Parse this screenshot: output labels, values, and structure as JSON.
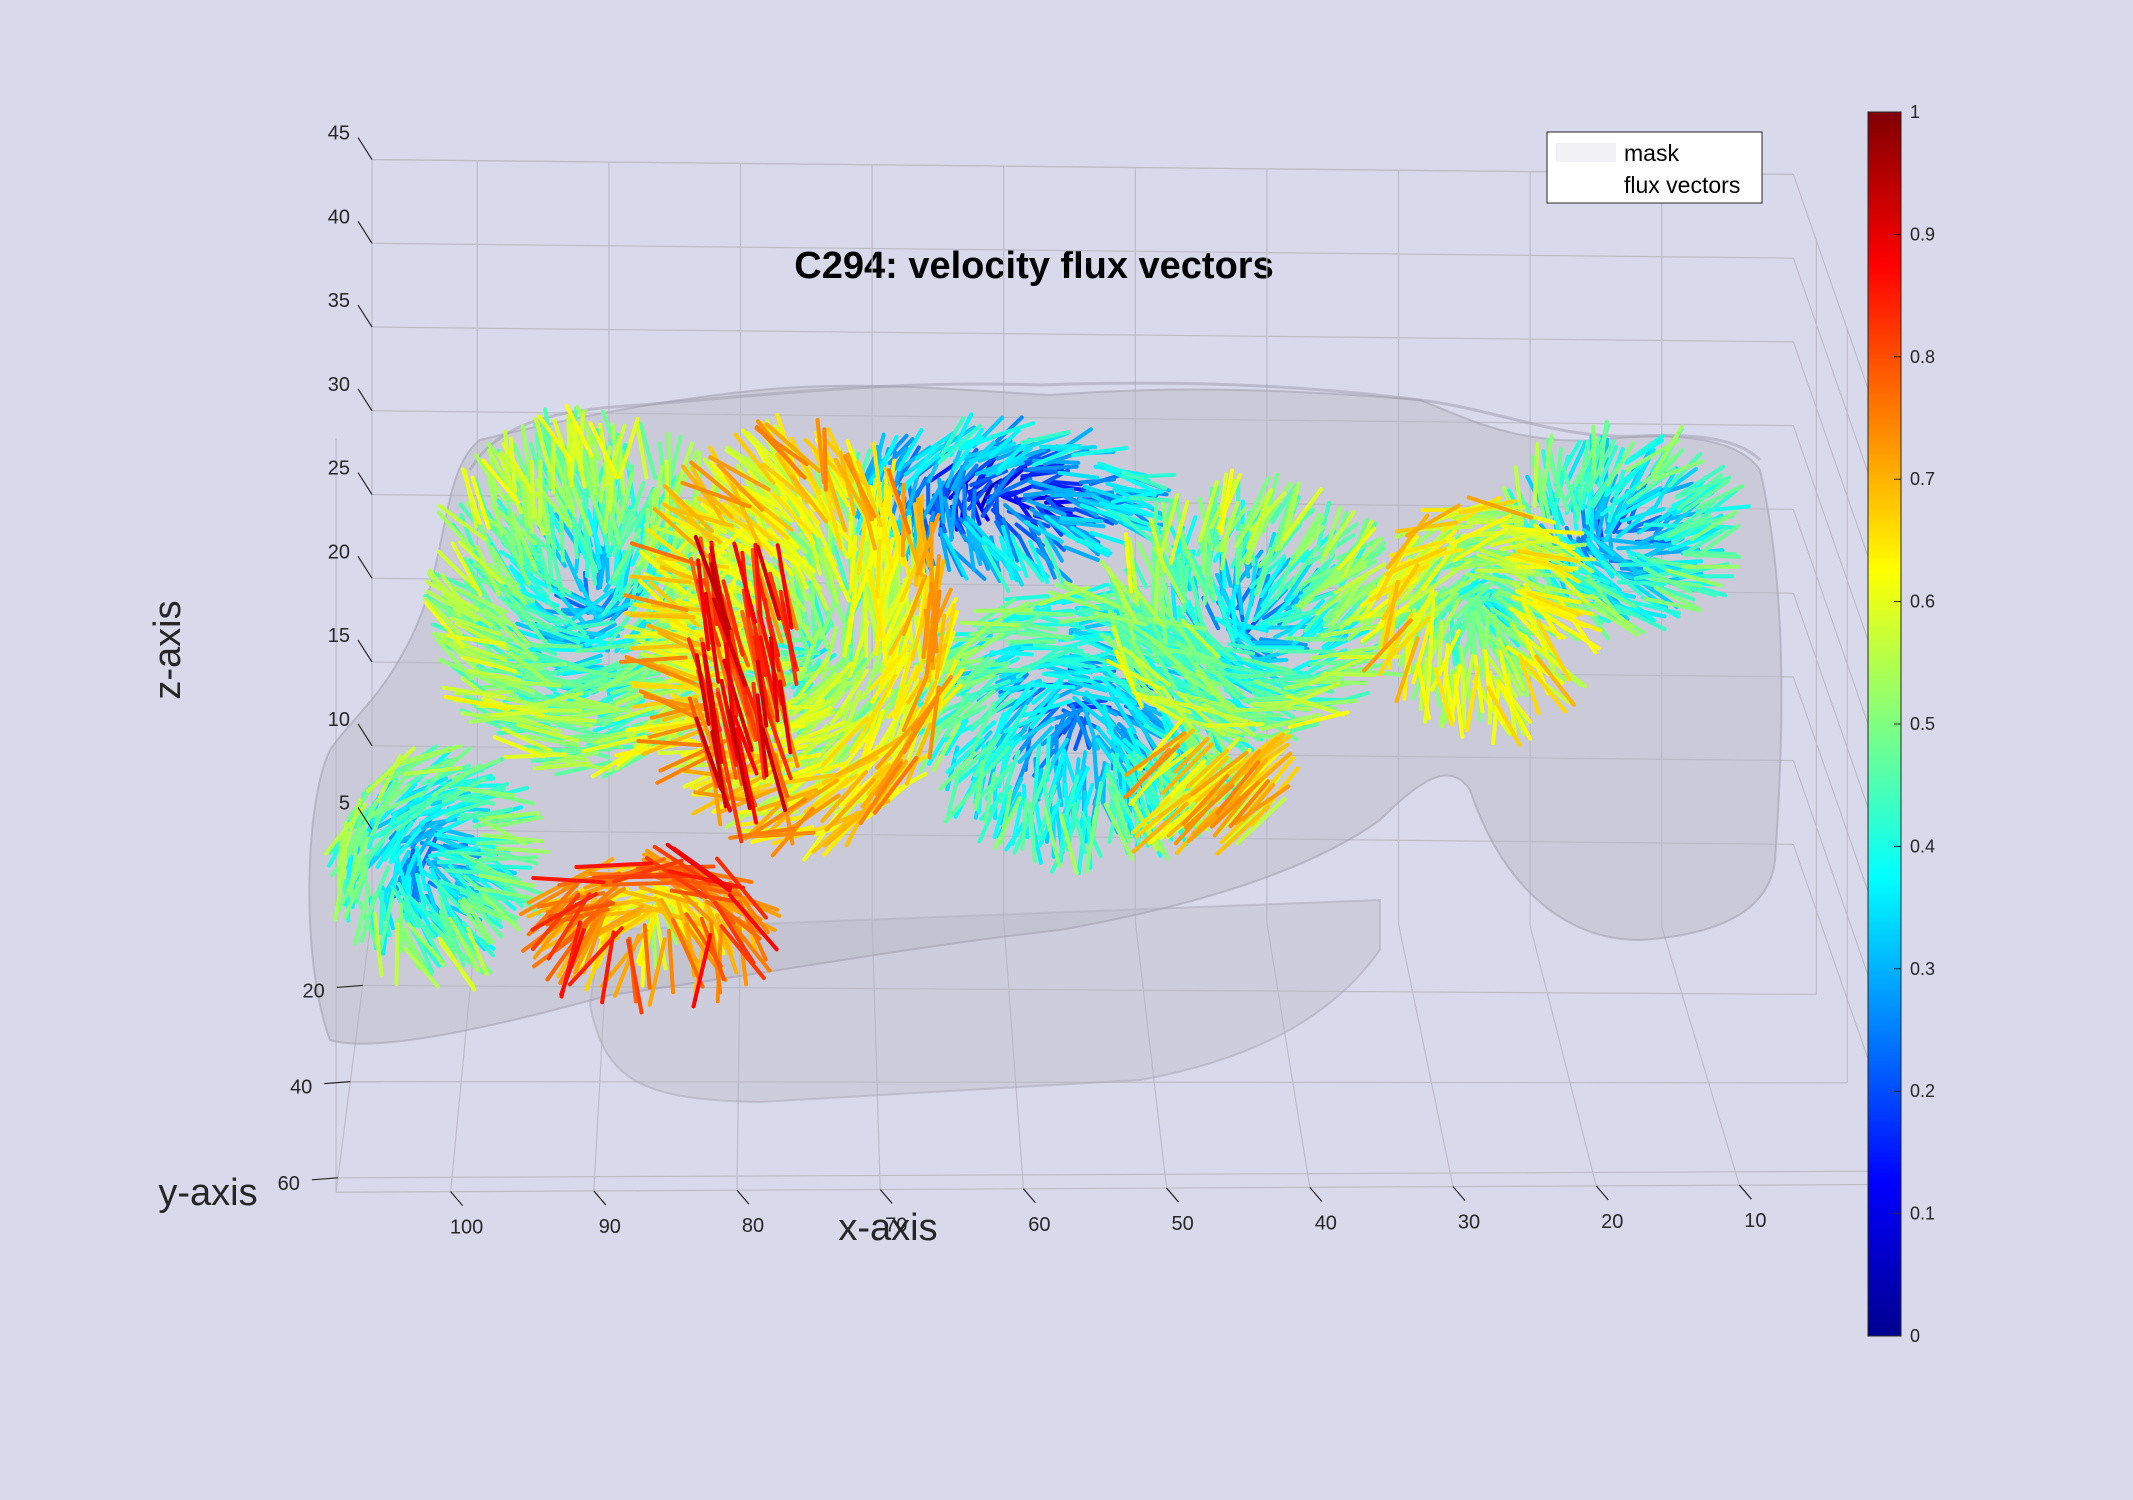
{
  "chart_data": {
    "type": "quiver3d",
    "title": "C294: velocity flux vectors",
    "xlabel": "x-axis",
    "ylabel": "y-axis",
    "zlabel": "z-axis",
    "x_ticks": [
      100,
      90,
      80,
      70,
      60,
      50,
      40,
      30,
      20,
      10
    ],
    "y_ticks": [
      20,
      40,
      60
    ],
    "z_ticks": [
      5,
      10,
      15,
      20,
      25,
      30,
      35,
      40,
      45
    ],
    "xlim": [
      0,
      108
    ],
    "ylim": [
      5,
      63
    ],
    "zlim": [
      0,
      45
    ],
    "x_direction": "reversed",
    "grid": true,
    "legend": {
      "location": "top-right",
      "entries": [
        {
          "label": "mask",
          "swatch": "#f2f2f6"
        },
        {
          "label": "flux vectors",
          "swatch": "#ffffff"
        }
      ]
    },
    "colorbar": {
      "colormap": "jet",
      "limits": [
        0,
        1
      ],
      "ticks": [
        "0",
        "0.1",
        "0.2",
        "0.3",
        "0.4",
        "0.5",
        "0.6",
        "0.7",
        "0.8",
        "0.9",
        "1"
      ]
    },
    "series": [
      {
        "name": "mask",
        "type": "isosurface",
        "color": "#b5b3c0"
      },
      {
        "name": "flux vectors",
        "type": "quiver",
        "color_by": "velocity magnitude"
      }
    ]
  }
}
